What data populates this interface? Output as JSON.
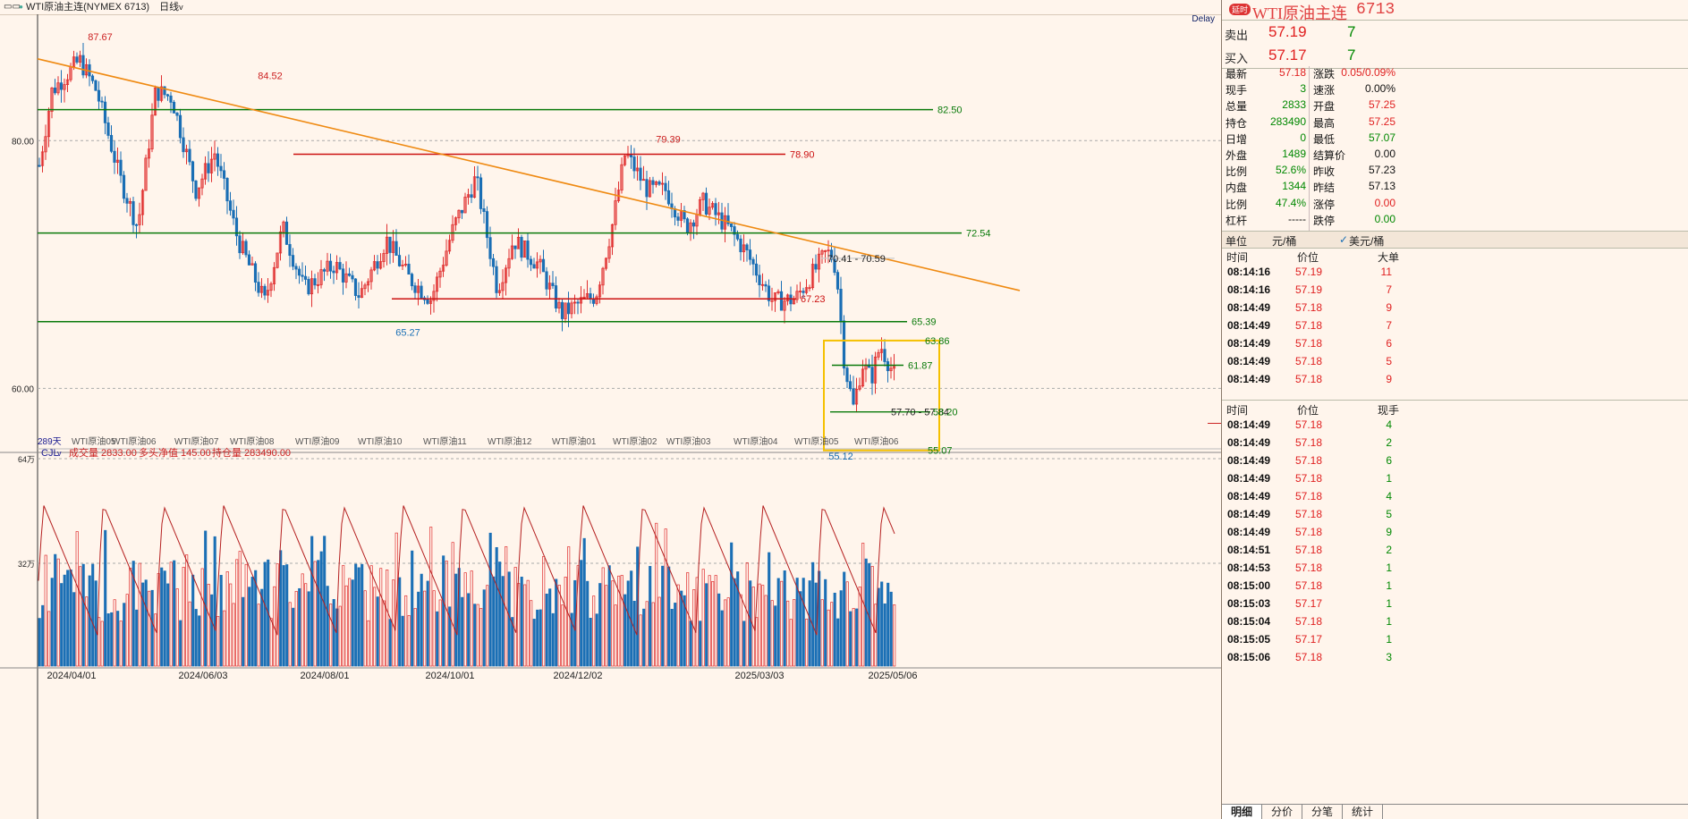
{
  "topbar": {
    "icon": "bars-icon",
    "dot": "●",
    "title": "WTI原油主连(NYMEX 6713)",
    "period": "日线",
    "period_caret": "v"
  },
  "header": {
    "badge": "延时",
    "title": "WTI原油主连",
    "code": "6713",
    "delay": "Delay"
  },
  "orderbook": {
    "ask": {
      "label": "卖出",
      "price": "57.19",
      "vol": "7"
    },
    "bid": {
      "label": "买入",
      "price": "57.17",
      "vol": "7"
    }
  },
  "stats": [
    {
      "l1": "最新",
      "v1": "57.18",
      "c1": "red",
      "l2": "涨跌",
      "v2": "0.05/0.09%",
      "c2": "red"
    },
    {
      "l1": "现手",
      "v1": "3",
      "c1": "grn",
      "l2": "速涨",
      "v2": "0.00%",
      "c2": "blk"
    },
    {
      "l1": "总量",
      "v1": "2833",
      "c1": "grn",
      "l2": "开盘",
      "v2": "57.25",
      "c2": "red"
    },
    {
      "l1": "持仓",
      "v1": "283490",
      "c1": "grn",
      "l2": "最高",
      "v2": "57.25",
      "c2": "red"
    },
    {
      "l1": "日增",
      "v1": "0",
      "c1": "grn",
      "l2": "最低",
      "v2": "57.07",
      "c2": "grn"
    },
    {
      "l1": "外盘",
      "v1": "1489",
      "c1": "grn",
      "l2": "结算价",
      "v2": "0.00",
      "c2": "blk"
    },
    {
      "l1": "比例",
      "v1": "52.6%",
      "c1": "grn",
      "l2": "昨收",
      "v2": "57.23",
      "c2": "blk"
    },
    {
      "l1": "内盘",
      "v1": "1344",
      "c1": "grn",
      "l2": "昨结",
      "v2": "57.13",
      "c2": "blk"
    },
    {
      "l1": "比例",
      "v1": "47.4%",
      "c1": "grn",
      "l2": "涨停",
      "v2": "0.00",
      "c2": "red"
    },
    {
      "l1": "杠杆",
      "v1": "-----",
      "c1": "blk",
      "l2": "跌停",
      "v2": "0.00",
      "c2": "grn"
    }
  ],
  "units": {
    "label": "单位",
    "opt1": "元/桶",
    "check": "✓",
    "opt2": "美元/桶"
  },
  "ticks_top": {
    "headers": [
      "时间",
      "价位",
      "大单"
    ],
    "rows": [
      [
        "08:14:16",
        "57.19",
        "11"
      ],
      [
        "08:14:16",
        "57.19",
        "7"
      ],
      [
        "08:14:49",
        "57.18",
        "9"
      ],
      [
        "08:14:49",
        "57.18",
        "7"
      ],
      [
        "08:14:49",
        "57.18",
        "6"
      ],
      [
        "08:14:49",
        "57.18",
        "5"
      ],
      [
        "08:14:49",
        "57.18",
        "9"
      ]
    ]
  },
  "ticks": {
    "headers": [
      "时间",
      "价位",
      "现手"
    ],
    "rows": [
      [
        "08:14:49",
        "57.18",
        "4"
      ],
      [
        "08:14:49",
        "57.18",
        "2"
      ],
      [
        "08:14:49",
        "57.18",
        "6"
      ],
      [
        "08:14:49",
        "57.18",
        "1"
      ],
      [
        "08:14:49",
        "57.18",
        "4"
      ],
      [
        "08:14:49",
        "57.18",
        "5"
      ],
      [
        "08:14:49",
        "57.18",
        "9"
      ],
      [
        "08:14:51",
        "57.18",
        "2"
      ],
      [
        "08:14:53",
        "57.18",
        "1"
      ],
      [
        "08:15:00",
        "57.18",
        "1"
      ],
      [
        "08:15:03",
        "57.17",
        "1"
      ],
      [
        "08:15:04",
        "57.18",
        "1"
      ],
      [
        "08:15:05",
        "57.17",
        "1"
      ],
      [
        "08:15:06",
        "57.18",
        "3"
      ]
    ]
  },
  "tabs": [
    "明细",
    "分价",
    "分笔",
    "统计"
  ],
  "volume_header": {
    "sel": "CJL",
    "caret": "v",
    "vol": "成交量 2833.00",
    "net": "多头净值 145.00",
    "oi": "持仓量 283490.00",
    "y_top": "64万",
    "y_mid": "32万"
  },
  "contract_labels": [
    "289天",
    "WTI原油05",
    "WTI原油06",
    "WTI原油07",
    "WTI原油08",
    "WTI原油09",
    "WTI原油10",
    "WTI原油11",
    "WTI原油12",
    "WTI原油01",
    "WTI原油02",
    "WTI原油03",
    "WTI原油04",
    "WTI原油05",
    "WTI原油06"
  ],
  "chart_data": {
    "type": "candlestick",
    "y_ticks": [
      "80.00",
      "60.00"
    ],
    "x_ticks": [
      "2024/04/01",
      "2024/06/03",
      "2024/08/01",
      "2024/10/01",
      "2024/12/02",
      "2025/03/03",
      "2025/05/06"
    ],
    "levels": [
      {
        "value": 82.5,
        "label": "82.50",
        "color": "#0a7a0a"
      },
      {
        "value": 78.9,
        "label": "78.90",
        "color": "#cc1111"
      },
      {
        "value": 72.54,
        "label": "72.54",
        "color": "#0a7a0a"
      },
      {
        "value": 67.23,
        "label": "67.23",
        "color": "#cc1111"
      },
      {
        "value": 65.39,
        "label": "65.39",
        "color": "#0a7a0a"
      },
      {
        "value": 61.87,
        "label": "61.87",
        "color": "#0a7a0a"
      }
    ],
    "peaks": [
      {
        "label": "87.67",
        "value": 87.67
      },
      {
        "label": "84.52",
        "value": 84.52
      },
      {
        "label": "79.39",
        "value": 79.39
      },
      {
        "label": "65.27",
        "value": 65.27
      },
      {
        "label": "55.12",
        "value": 55.12
      }
    ],
    "annotations": [
      "70.41 - 70.59",
      "57.70 - 57.84",
      "63.86",
      "58.20",
      "55.07"
    ],
    "colors": {
      "up": "#e03030",
      "down": "#1a6fb5",
      "trend": "#ef8a12",
      "box": "#f5c000"
    }
  }
}
